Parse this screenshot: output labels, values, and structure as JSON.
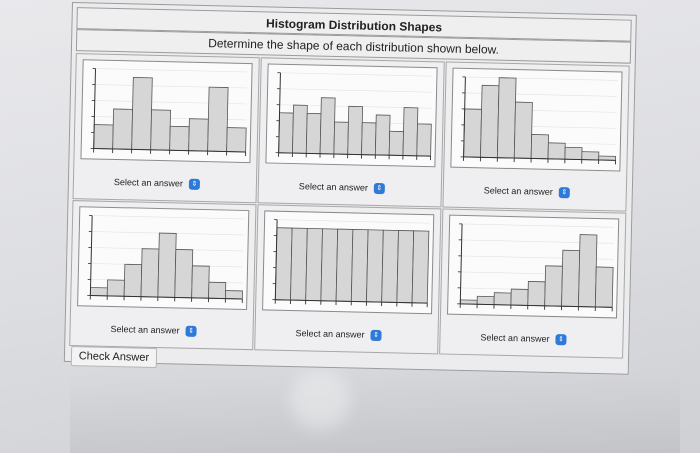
{
  "page": {
    "title": "Histogram Distribution Shapes",
    "subtitle": "Determine the shape of each distribution shown below.",
    "check_button": "Check Answer"
  },
  "histograms": [
    {
      "id": 1,
      "answer_label": "Select an answer",
      "values": [
        3,
        5,
        9,
        5,
        3,
        4,
        8,
        3
      ]
    },
    {
      "id": 2,
      "answer_label": "Select an answer",
      "values": [
        5,
        6,
        5,
        7,
        4,
        6,
        4,
        5,
        3,
        6,
        4
      ]
    },
    {
      "id": 3,
      "answer_label": "Select an answer",
      "values": [
        6,
        9,
        10,
        7,
        3,
        2,
        1.5,
        1,
        0.5
      ]
    },
    {
      "id": 4,
      "answer_label": "Select an answer",
      "values": [
        1,
        2,
        4,
        6,
        8,
        6,
        4,
        2,
        1
      ]
    },
    {
      "id": 5,
      "answer_label": "Select an answer",
      "values": [
        9,
        9,
        9,
        9,
        9,
        9,
        9,
        9,
        9,
        9
      ]
    },
    {
      "id": 6,
      "answer_label": "Select an answer",
      "values": [
        0.5,
        1,
        1.5,
        2,
        3,
        5,
        7,
        9,
        5
      ]
    }
  ],
  "icons": {
    "select": "updown-chevron-icon"
  },
  "colors": {
    "bar_fill": "#d6d6d6",
    "bar_stroke": "#555555",
    "select_icon": "#2f7ad8"
  }
}
